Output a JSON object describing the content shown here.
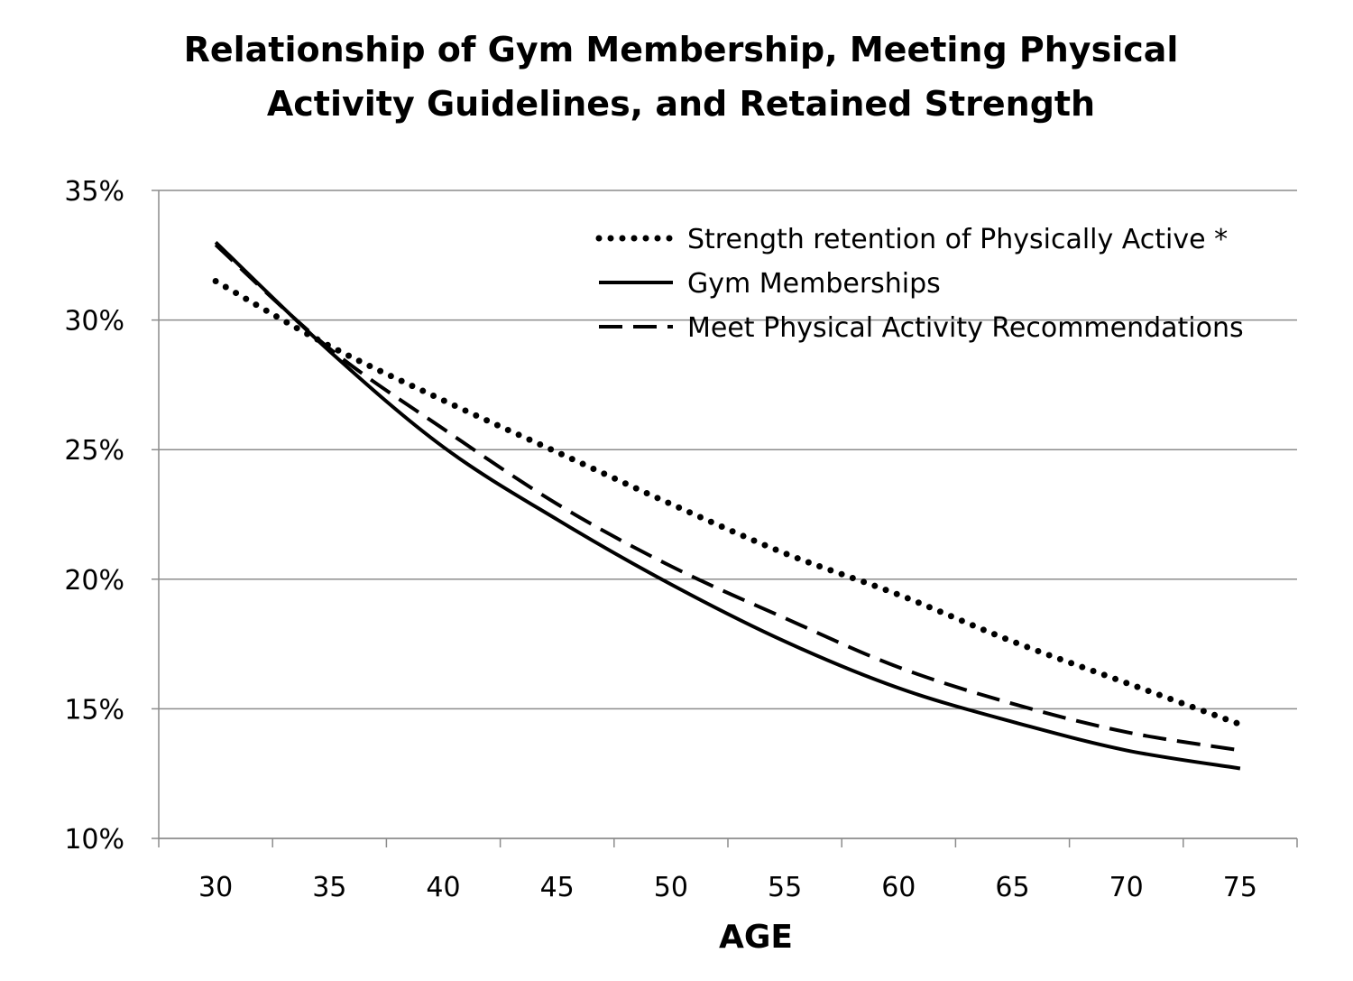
{
  "chart_data": {
    "type": "line",
    "title_lines": [
      "Relationship of Gym Membership, Meeting Physical",
      "Activity Guidelines, and Retained Strength"
    ],
    "xlabel": "AGE",
    "ylabel": "",
    "x": [
      30,
      35,
      40,
      45,
      50,
      55,
      60,
      65,
      70,
      75
    ],
    "x_tick_labels": [
      "30",
      "35",
      "40",
      "45",
      "50",
      "55",
      "60",
      "65",
      "70",
      "75"
    ],
    "y_tick_values": [
      10,
      15,
      20,
      25,
      30,
      35
    ],
    "y_tick_labels": [
      "10%",
      "15%",
      "20%",
      "25%",
      "30%",
      "35%"
    ],
    "xlim": [
      27.5,
      77.5
    ],
    "ylim": [
      10,
      35
    ],
    "grid": "horizontal",
    "legend_position": "top-right",
    "series": [
      {
        "name": "Strength retention of Physically Active *",
        "style": "dotted",
        "values": [
          31.5,
          29.0,
          26.9,
          24.9,
          22.9,
          21.0,
          19.4,
          17.6,
          16.0,
          14.4
        ]
      },
      {
        "name": "Gym Memberships",
        "style": "solid",
        "values": [
          33.0,
          28.8,
          25.1,
          22.3,
          19.8,
          17.6,
          15.8,
          14.5,
          13.4,
          12.7
        ]
      },
      {
        "name": "Meet Physical Activity Recommendations",
        "style": "dashed",
        "values": [
          32.9,
          28.9,
          25.8,
          22.9,
          20.5,
          18.5,
          16.6,
          15.2,
          14.1,
          13.4
        ]
      }
    ],
    "colors": {
      "lines": "#000000",
      "grid": "#8c8c8c",
      "axis": "#8c8c8c"
    }
  }
}
